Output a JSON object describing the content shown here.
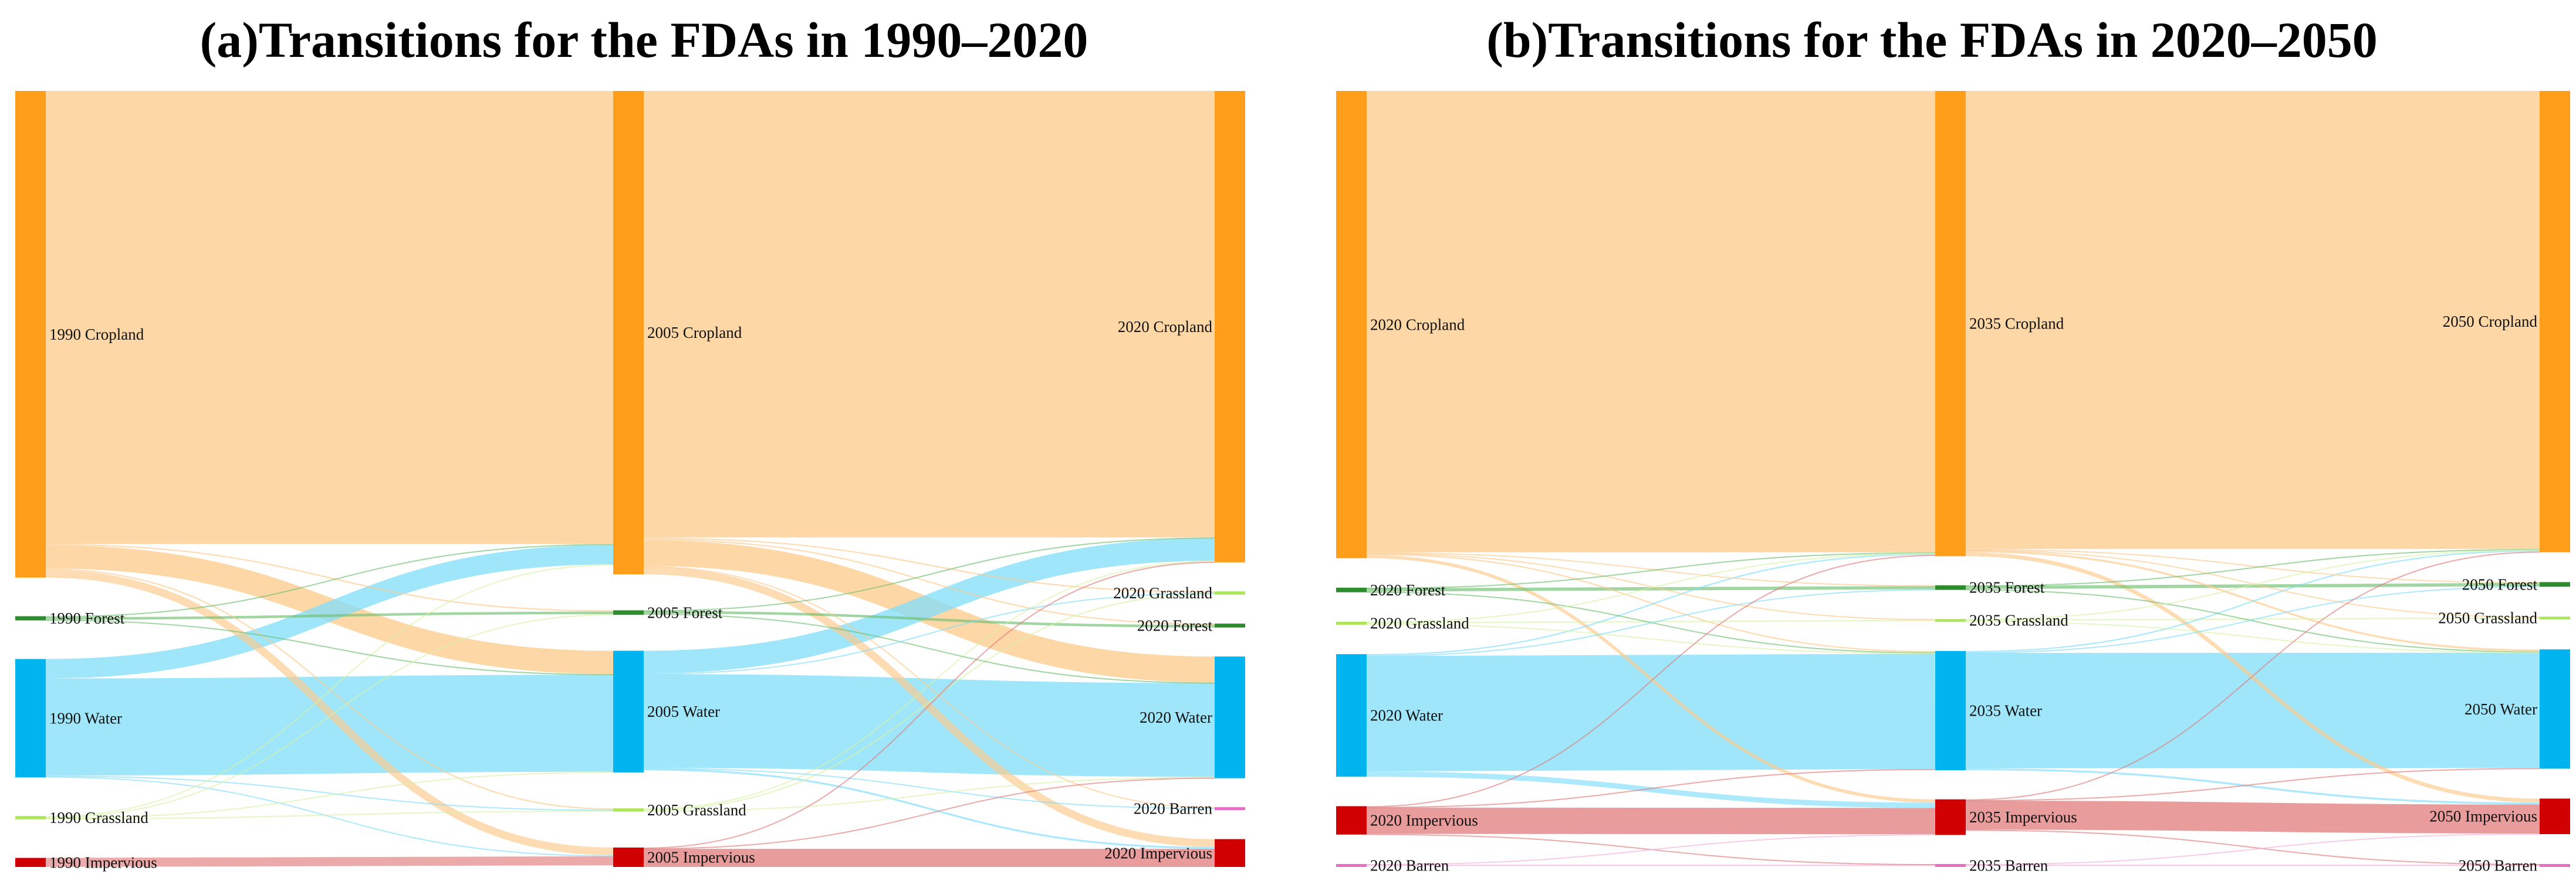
{
  "panels": [
    {
      "title": "(a)Transitions for the FDAs in 1990–2020",
      "nodes": [
        {
          "id": "c1",
          "label": "1990 Cropland",
          "type": "cropland",
          "col": 0
        },
        {
          "id": "f1",
          "label": "1990 Forest",
          "type": "forest",
          "col": 0
        },
        {
          "id": "w1",
          "label": "1990 Water",
          "type": "water",
          "col": 0
        },
        {
          "id": "g1",
          "label": "1990 Grassland",
          "type": "grassland",
          "col": 0
        },
        {
          "id": "i1",
          "label": "1990 Impervious",
          "type": "impervious",
          "col": 0
        },
        {
          "id": "c2",
          "label": "2005 Cropland",
          "type": "cropland",
          "col": 1
        },
        {
          "id": "f2",
          "label": "2005 Forest",
          "type": "forest",
          "col": 1
        },
        {
          "id": "w2",
          "label": "2005 Water",
          "type": "water",
          "col": 1
        },
        {
          "id": "g2",
          "label": "2005 Grassland",
          "type": "grassland",
          "col": 1
        },
        {
          "id": "i2",
          "label": "2005 Impervious",
          "type": "impervious",
          "col": 1
        },
        {
          "id": "c3",
          "label": "2020 Cropland",
          "type": "cropland",
          "col": 2
        },
        {
          "id": "gr3",
          "label": "2020 Grassland",
          "type": "grassland",
          "col": 2
        },
        {
          "id": "f3",
          "label": "2020 Forest",
          "type": "forest",
          "col": 2
        },
        {
          "id": "w3",
          "label": "2020 Water",
          "type": "water",
          "col": 2
        },
        {
          "id": "b3",
          "label": "2020 Barren",
          "type": "barren",
          "col": 2
        },
        {
          "id": "i3",
          "label": "2020 Impervious",
          "type": "impervious",
          "col": 2
        }
      ],
      "links": [
        {
          "s": "c1",
          "t": "c2",
          "v": 700
        },
        {
          "s": "c1",
          "t": "w2",
          "v": 36
        },
        {
          "s": "c1",
          "t": "i2",
          "v": 12
        },
        {
          "s": "c1",
          "t": "f2",
          "v": 2
        },
        {
          "s": "c1",
          "t": "g2",
          "v": 2
        },
        {
          "s": "f1",
          "t": "f2",
          "v": 4
        },
        {
          "s": "f1",
          "t": "c2",
          "v": 1.5
        },
        {
          "s": "f1",
          "t": "w2",
          "v": 1
        },
        {
          "s": "w1",
          "t": "w2",
          "v": 150
        },
        {
          "s": "w1",
          "t": "c2",
          "v": 30
        },
        {
          "s": "w1",
          "t": "g2",
          "v": 1.5
        },
        {
          "s": "w1",
          "t": "i2",
          "v": 1.5
        },
        {
          "s": "g1",
          "t": "g2",
          "v": 1.5
        },
        {
          "s": "g1",
          "t": "c2",
          "v": 1.5
        },
        {
          "s": "g1",
          "t": "w2",
          "v": 1
        },
        {
          "s": "g1",
          "t": "f2",
          "v": 1
        },
        {
          "s": "i1",
          "t": "i2",
          "v": 14
        },
        {
          "s": "c2",
          "t": "c3",
          "v": 690
        },
        {
          "s": "c2",
          "t": "w3",
          "v": 40
        },
        {
          "s": "c2",
          "t": "i3",
          "v": 12
        },
        {
          "s": "c2",
          "t": "gr3",
          "v": 2
        },
        {
          "s": "c2",
          "t": "f3",
          "v": 2
        },
        {
          "s": "c2",
          "t": "b3",
          "v": 1
        },
        {
          "s": "f2",
          "t": "f3",
          "v": 4
        },
        {
          "s": "f2",
          "t": "c3",
          "v": 1
        },
        {
          "s": "f2",
          "t": "w3",
          "v": 1
        },
        {
          "s": "w2",
          "t": "w3",
          "v": 145
        },
        {
          "s": "w2",
          "t": "c3",
          "v": 35
        },
        {
          "s": "w2",
          "t": "i3",
          "v": 3
        },
        {
          "s": "w2",
          "t": "gr3",
          "v": 1
        },
        {
          "s": "w2",
          "t": "b3",
          "v": 1
        },
        {
          "s": "g2",
          "t": "gr3",
          "v": 2
        },
        {
          "s": "g2",
          "t": "c3",
          "v": 1.5
        },
        {
          "s": "g2",
          "t": "w3",
          "v": 1
        },
        {
          "s": "i2",
          "t": "i3",
          "v": 28
        },
        {
          "s": "i2",
          "t": "c3",
          "v": 1
        },
        {
          "s": "i2",
          "t": "w3",
          "v": 1
        }
      ]
    },
    {
      "title": "(b)Transitions for the FDAs in 2020–2050",
      "nodes": [
        {
          "id": "c1",
          "label": "2020 Cropland",
          "type": "cropland",
          "col": 0
        },
        {
          "id": "f1",
          "label": "2020 Forest",
          "type": "forest",
          "col": 0
        },
        {
          "id": "g1",
          "label": "2020 Grassland",
          "type": "grassland",
          "col": 0
        },
        {
          "id": "w1",
          "label": "2020 Water",
          "type": "water",
          "col": 0
        },
        {
          "id": "i1",
          "label": "2020 Impervious",
          "type": "impervious",
          "col": 0
        },
        {
          "id": "b1",
          "label": "2020 Barren",
          "type": "barren",
          "col": 0
        },
        {
          "id": "c2",
          "label": "2035 Cropland",
          "type": "cropland",
          "col": 1
        },
        {
          "id": "f2",
          "label": "2035 Forest",
          "type": "forest",
          "col": 1
        },
        {
          "id": "g2",
          "label": "2035 Grassland",
          "type": "grassland",
          "col": 1
        },
        {
          "id": "w2",
          "label": "2035 Water",
          "type": "water",
          "col": 1
        },
        {
          "id": "i2",
          "label": "2035 Impervious",
          "type": "impervious",
          "col": 1
        },
        {
          "id": "b2",
          "label": "2035 Barren",
          "type": "barren",
          "col": 1
        },
        {
          "id": "c3",
          "label": "2050 Cropland",
          "type": "cropland",
          "col": 2
        },
        {
          "id": "f3",
          "label": "2050 Forest",
          "type": "forest",
          "col": 2
        },
        {
          "id": "g3",
          "label": "2050 Grassland",
          "type": "grassland",
          "col": 2
        },
        {
          "id": "w3",
          "label": "2050 Water",
          "type": "water",
          "col": 2
        },
        {
          "id": "i3",
          "label": "2050 Impervious",
          "type": "impervious",
          "col": 2
        },
        {
          "id": "b3",
          "label": "2050 Barren",
          "type": "barren",
          "col": 2
        }
      ],
      "links": [
        {
          "s": "c1",
          "t": "c2",
          "v": 700
        },
        {
          "s": "c1",
          "t": "i2",
          "v": 5
        },
        {
          "s": "c1",
          "t": "w2",
          "v": 2
        },
        {
          "s": "c1",
          "t": "f2",
          "v": 1
        },
        {
          "s": "c1",
          "t": "g2",
          "v": 1
        },
        {
          "s": "f1",
          "t": "f2",
          "v": 5
        },
        {
          "s": "f1",
          "t": "c2",
          "v": 1
        },
        {
          "s": "f1",
          "t": "w2",
          "v": 1
        },
        {
          "s": "g1",
          "t": "g2",
          "v": 2
        },
        {
          "s": "g1",
          "t": "c2",
          "v": 1
        },
        {
          "s": "g1",
          "t": "w2",
          "v": 1
        },
        {
          "s": "w1",
          "t": "w2",
          "v": 175
        },
        {
          "s": "w1",
          "t": "i2",
          "v": 8
        },
        {
          "s": "w1",
          "t": "c2",
          "v": 2
        },
        {
          "s": "w1",
          "t": "f2",
          "v": 1
        },
        {
          "s": "i1",
          "t": "i2",
          "v": 40
        },
        {
          "s": "i1",
          "t": "c2",
          "v": 1
        },
        {
          "s": "i1",
          "t": "w2",
          "v": 1
        },
        {
          "s": "i1",
          "t": "b2",
          "v": 1
        },
        {
          "s": "b1",
          "t": "b2",
          "v": 2
        },
        {
          "s": "b1",
          "t": "i2",
          "v": 1
        },
        {
          "s": "c2",
          "t": "c3",
          "v": 695
        },
        {
          "s": "c2",
          "t": "i3",
          "v": 6
        },
        {
          "s": "c2",
          "t": "w3",
          "v": 3
        },
        {
          "s": "c2",
          "t": "f3",
          "v": 1
        },
        {
          "s": "c2",
          "t": "g3",
          "v": 1
        },
        {
          "s": "f2",
          "t": "f3",
          "v": 5
        },
        {
          "s": "f2",
          "t": "c3",
          "v": 1
        },
        {
          "s": "f2",
          "t": "w3",
          "v": 1
        },
        {
          "s": "g2",
          "t": "g3",
          "v": 2
        },
        {
          "s": "g2",
          "t": "c3",
          "v": 1
        },
        {
          "s": "g2",
          "t": "w3",
          "v": 1
        },
        {
          "s": "w2",
          "t": "w3",
          "v": 175
        },
        {
          "s": "w2",
          "t": "i3",
          "v": 3
        },
        {
          "s": "w2",
          "t": "c3",
          "v": 2
        },
        {
          "s": "w2",
          "t": "f3",
          "v": 1
        },
        {
          "s": "i2",
          "t": "i3",
          "v": 44
        },
        {
          "s": "i2",
          "t": "c3",
          "v": 1
        },
        {
          "s": "i2",
          "t": "w3",
          "v": 1
        },
        {
          "s": "i2",
          "t": "b3",
          "v": 1
        },
        {
          "s": "b2",
          "t": "b3",
          "v": 2
        },
        {
          "s": "b2",
          "t": "i3",
          "v": 1
        }
      ]
    }
  ],
  "colors": {
    "cropland": {
      "node": "#FF9E1B",
      "link": "#FDC98A"
    },
    "forest": {
      "node": "#2E8B2E",
      "link": "#6FBF6F"
    },
    "water": {
      "node": "#00B4F0",
      "link": "#7FDDFA"
    },
    "grassland": {
      "node": "#ADE65A",
      "link": "#D6F3A6"
    },
    "impervious": {
      "node": "#D10000",
      "link": "#E07B7B"
    },
    "barren": {
      "node": "#E86EC4",
      "link": "#F2B0DD"
    }
  }
}
